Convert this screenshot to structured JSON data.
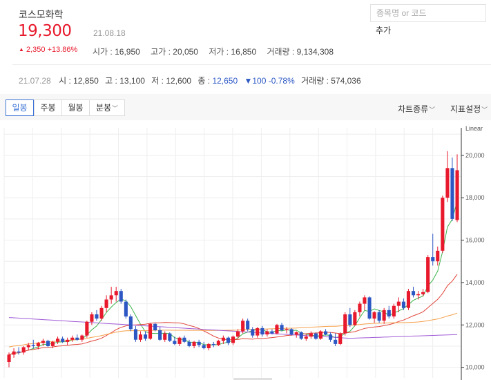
{
  "header": {
    "stock_name": "코스모화학",
    "price": "19,300",
    "price_date": "21.08.18",
    "change_abs": "2,350",
    "change_pct": "+13.86%",
    "change_icon": "triangle-up-icon",
    "stats": [
      {
        "key": "시가",
        "value": "16,950"
      },
      {
        "key": "고가",
        "value": "20,050"
      },
      {
        "key": "저가",
        "value": "16,850"
      },
      {
        "key": "거래량",
        "value": "9,134,308"
      }
    ]
  },
  "search": {
    "placeholder": "종목명 or 코드",
    "add_label": "추가"
  },
  "previous": {
    "date": "21.07.28",
    "open_label": "시",
    "open": "12,850",
    "high_label": "고",
    "high": "13,100",
    "low_label": "저",
    "low": "12,600",
    "close_label": "종",
    "close": "12,650",
    "change": "▼100 -0.78%",
    "volume_label": "거래량",
    "volume": "574,036"
  },
  "toolbar": {
    "periods": [
      "일봉",
      "주봉",
      "월봉",
      "분봉"
    ],
    "active_period": "일봉",
    "chart_type_label": "차트종류",
    "indicator_label": "지표설정"
  },
  "colors": {
    "up": "#e8192c",
    "down": "#2d58c4",
    "ma5": "#3cb44b",
    "ma20": "#e0453a",
    "ma60": "#f5a04a",
    "ma120": "#a05ad6"
  },
  "chart_data": {
    "type": "candlestick",
    "scale_label": "Linear",
    "y_ticks": [
      "10,000",
      "12,000",
      "14,000",
      "16,000",
      "18,000",
      "20,000"
    ],
    "y_tick_values": [
      10000,
      12000,
      14000,
      16000,
      18000,
      20000
    ],
    "ylim": [
      9500,
      21300
    ],
    "grid": true,
    "candles": [
      [
        10250,
        10700,
        10000,
        10600
      ],
      [
        10600,
        10900,
        10450,
        10750
      ],
      [
        10750,
        10950,
        10600,
        10700
      ],
      [
        10700,
        11000,
        10600,
        10950
      ],
      [
        10950,
        11150,
        10800,
        11050
      ],
      [
        11050,
        11300,
        10900,
        11000
      ],
      [
        11000,
        11200,
        10850,
        11150
      ],
      [
        11150,
        11350,
        11000,
        11250
      ],
      [
        11250,
        11300,
        10950,
        11000
      ],
      [
        11000,
        11250,
        10900,
        11200
      ],
      [
        11200,
        11450,
        11100,
        11350
      ],
      [
        11350,
        11450,
        11150,
        11200
      ],
      [
        11200,
        11400,
        11050,
        11300
      ],
      [
        11300,
        11500,
        11200,
        11400
      ],
      [
        11400,
        11550,
        11250,
        11300
      ],
      [
        11300,
        11550,
        11200,
        11500
      ],
      [
        11500,
        12200,
        11400,
        12150
      ],
      [
        12150,
        12600,
        12000,
        12500
      ],
      [
        12500,
        12700,
        12200,
        12300
      ],
      [
        12300,
        12900,
        12200,
        12800
      ],
      [
        12800,
        13400,
        12600,
        13200
      ],
      [
        13200,
        13800,
        13000,
        13400
      ],
      [
        13400,
        13800,
        13100,
        13600
      ],
      [
        13600,
        13700,
        13000,
        13100
      ],
      [
        13100,
        13200,
        12300,
        12400
      ],
      [
        12400,
        12500,
        11700,
        11800
      ],
      [
        11800,
        11950,
        11200,
        11300
      ],
      [
        11300,
        11700,
        11200,
        11550
      ],
      [
        11550,
        11700,
        11250,
        11350
      ],
      [
        11350,
        12100,
        11300,
        12050
      ],
      [
        12050,
        12100,
        11700,
        11750
      ],
      [
        11750,
        11900,
        11250,
        11300
      ],
      [
        11300,
        11700,
        11200,
        11600
      ],
      [
        11600,
        11650,
        11200,
        11250
      ],
      [
        11250,
        11450,
        11050,
        11100
      ],
      [
        11100,
        11450,
        11000,
        11400
      ],
      [
        11400,
        11500,
        11150,
        11200
      ],
      [
        11200,
        11300,
        10950,
        11000
      ],
      [
        11000,
        11250,
        10900,
        11200
      ],
      [
        11200,
        11300,
        10950,
        11050
      ],
      [
        11050,
        11200,
        10850,
        10900
      ],
      [
        10900,
        11150,
        10800,
        11100
      ],
      [
        11100,
        11200,
        10950,
        11050
      ],
      [
        11050,
        11300,
        11000,
        11250
      ],
      [
        11250,
        11500,
        11100,
        11400
      ],
      [
        11400,
        11450,
        11050,
        11150
      ],
      [
        11150,
        11500,
        11050,
        11450
      ],
      [
        11450,
        11800,
        11350,
        11700
      ],
      [
        11700,
        12300,
        11600,
        12200
      ],
      [
        12200,
        12300,
        11700,
        11800
      ],
      [
        11800,
        11900,
        11400,
        11500
      ],
      [
        11500,
        11900,
        11400,
        11850
      ],
      [
        11850,
        11950,
        11450,
        11550
      ],
      [
        11550,
        11800,
        11450,
        11700
      ],
      [
        11700,
        11800,
        11550,
        11600
      ],
      [
        11600,
        12050,
        11550,
        12000
      ],
      [
        12000,
        12100,
        11700,
        11750
      ],
      [
        11750,
        11900,
        11600,
        11800
      ],
      [
        11800,
        11850,
        11500,
        11550
      ],
      [
        11550,
        11700,
        11400,
        11650
      ],
      [
        11650,
        11700,
        11300,
        11350
      ],
      [
        11350,
        11550,
        11250,
        11450
      ],
      [
        11450,
        11700,
        11350,
        11600
      ],
      [
        11600,
        11650,
        11300,
        11350
      ],
      [
        11350,
        11750,
        11300,
        11700
      ],
      [
        11700,
        11800,
        11500,
        11550
      ],
      [
        11550,
        11650,
        11200,
        11300
      ],
      [
        11300,
        11600,
        11000,
        11100
      ],
      [
        11100,
        11650,
        11050,
        11600
      ],
      [
        11600,
        12600,
        11500,
        12500
      ],
      [
        12500,
        12800,
        11900,
        12000
      ],
      [
        12000,
        12700,
        11950,
        12600
      ],
      [
        12600,
        13100,
        12400,
        13000
      ],
      [
        13000,
        13400,
        12700,
        13300
      ],
      [
        13300,
        13350,
        12250,
        12300
      ],
      [
        12300,
        12650,
        12100,
        12600
      ],
      [
        12600,
        12700,
        12100,
        12200
      ],
      [
        12200,
        12800,
        12050,
        12700
      ],
      [
        12700,
        12900,
        12300,
        12400
      ],
      [
        12400,
        13000,
        12300,
        12900
      ],
      [
        12900,
        13300,
        12600,
        13100
      ],
      [
        13100,
        13250,
        12700,
        12800
      ],
      [
        12800,
        13700,
        12700,
        13600
      ],
      [
        13600,
        13800,
        13300,
        13400
      ],
      [
        13400,
        13600,
        13200,
        13450
      ],
      [
        13450,
        13700,
        13350,
        13550
      ],
      [
        13550,
        15300,
        13500,
        15200
      ],
      [
        15200,
        16300,
        14800,
        15000
      ],
      [
        15000,
        15700,
        14800,
        15500
      ],
      [
        15500,
        18100,
        15400,
        18000
      ],
      [
        18000,
        20200,
        17800,
        19400
      ],
      [
        19400,
        19900,
        16900,
        17000
      ],
      [
        16950,
        20050,
        16850,
        19300
      ]
    ],
    "moving_averages": [
      {
        "name": "MA5",
        "color_key": "ma5"
      },
      {
        "name": "MA20",
        "color_key": "ma20"
      },
      {
        "name": "MA60",
        "color_key": "ma60"
      },
      {
        "name": "MA120",
        "color_key": "ma120"
      }
    ]
  }
}
